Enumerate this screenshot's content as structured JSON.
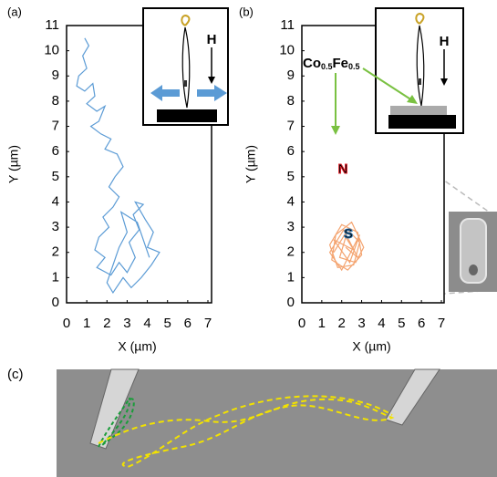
{
  "chart_data": [
    {
      "type": "line",
      "panel_label": "(a)",
      "xlabel": "X (µm)",
      "ylabel": "Y (µm)",
      "xlim": [
        0,
        7
      ],
      "ylim": [
        0,
        11
      ],
      "xticks": [
        0,
        1,
        2,
        3,
        4,
        5,
        6,
        7
      ],
      "yticks": [
        0,
        1,
        2,
        3,
        4,
        5,
        6,
        7,
        8,
        9,
        10,
        11
      ],
      "annotations": [
        "H"
      ],
      "series": [
        {
          "color": "#5b9bd5",
          "x": [
            0.9,
            1.1,
            0.8,
            1.0,
            0.6,
            0.5,
            0.9,
            1.3,
            1.4,
            1.0,
            1.5,
            1.9,
            1.6,
            1.2,
            1.7,
            2.2,
            1.9,
            2.5,
            2.8,
            2.4,
            2.1,
            2.6,
            2.3,
            1.8,
            2.1,
            1.6,
            1.4,
            1.9,
            1.5,
            2.2,
            2.6,
            3.0,
            3.4,
            3.1,
            3.6,
            3.3,
            3.8,
            3.4,
            3.9,
            4.3,
            4.0,
            4.6,
            4.2,
            3.7,
            3.2,
            2.8,
            2.3,
            2.0,
            2.6,
            3.0,
            2.7,
            3.5,
            4.1
          ],
          "values": [
            10.5,
            10.2,
            9.8,
            9.3,
            9.0,
            8.6,
            8.4,
            8.7,
            8.2,
            7.9,
            7.6,
            7.8,
            7.2,
            7.0,
            6.7,
            6.5,
            6.1,
            5.9,
            5.4,
            5.0,
            4.6,
            4.2,
            3.8,
            3.4,
            3.0,
            2.6,
            2.1,
            1.8,
            1.4,
            1.1,
            1.6,
            1.2,
            1.8,
            2.4,
            2.9,
            3.5,
            3.9,
            4.0,
            3.3,
            2.8,
            2.2,
            2.0,
            1.5,
            1.0,
            0.6,
            1.0,
            0.4,
            0.8,
            2.2,
            2.8,
            3.6,
            3.2,
            1.8
          ]
        }
      ]
    },
    {
      "type": "line",
      "panel_label": "(b)",
      "xlabel": "X (µm)",
      "ylabel": "Y (µm)",
      "xlim": [
        0,
        7
      ],
      "ylim": [
        0,
        11
      ],
      "xticks": [
        0,
        1,
        2,
        3,
        4,
        5,
        6,
        7
      ],
      "yticks": [
        0,
        1,
        2,
        3,
        4,
        5,
        6,
        7,
        8,
        9,
        10,
        11
      ],
      "annotations": [
        "H",
        "N",
        "S"
      ],
      "material": [
        "Co",
        "0.5",
        "Fe",
        "0.5"
      ],
      "series": [
        {
          "color": "#f4a470",
          "x": [
            1.6,
            2.3,
            2.9,
            2.6,
            1.8,
            1.4,
            2.0,
            2.8,
            3.0,
            2.3,
            1.5,
            1.7,
            2.5,
            3.1,
            2.7,
            1.9,
            2.2,
            2.6,
            1.6,
            2.4,
            2.9,
            2.0,
            1.4,
            2.1,
            2.8,
            2.2
          ],
          "values": [
            2.0,
            2.9,
            2.4,
            1.5,
            1.4,
            2.3,
            3.1,
            2.8,
            1.9,
            1.3,
            1.7,
            2.7,
            3.2,
            2.2,
            1.6,
            1.8,
            2.6,
            2.1,
            2.5,
            1.6,
            2.7,
            1.3,
            2.0,
            2.9,
            1.8,
            2.2
          ]
        }
      ]
    }
  ],
  "panel_c": {
    "label": "(c)"
  }
}
